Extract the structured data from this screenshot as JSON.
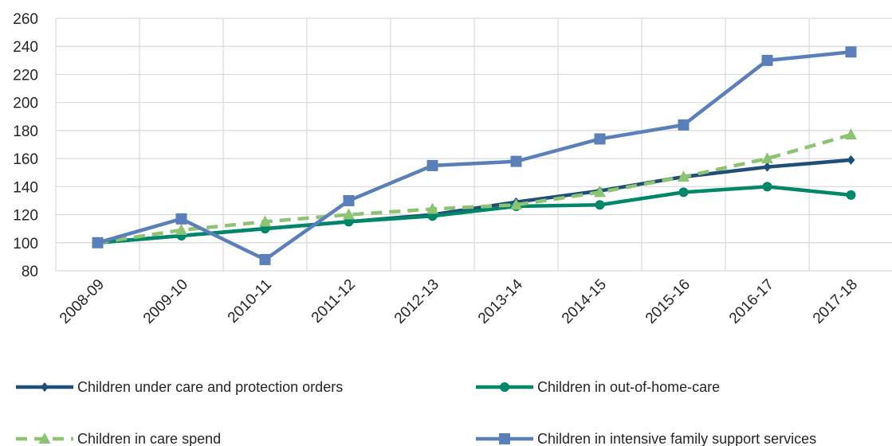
{
  "chart_data": {
    "type": "line",
    "title": "",
    "xlabel": "",
    "ylabel": "",
    "categories": [
      "2008-09",
      "2009-10",
      "2010-11",
      "2011-12",
      "2012-13",
      "2013-14",
      "2014-15",
      "2015-16",
      "2016-17",
      "2017-18"
    ],
    "ylim": [
      80,
      260
    ],
    "yticks": [
      80,
      100,
      120,
      140,
      160,
      180,
      200,
      220,
      240,
      260
    ],
    "grid": true,
    "legend_position": "bottom",
    "series": [
      {
        "name": "Children under care and protection orders",
        "color": "#1f4e79",
        "marker": "diamond",
        "dash": false,
        "values": [
          100,
          105,
          110,
          115,
          120,
          129,
          137,
          147,
          154,
          159
        ]
      },
      {
        "name": "Children in out-of-home-care",
        "color": "#00876a",
        "marker": "circle",
        "dash": false,
        "values": [
          100,
          105,
          110,
          115,
          119,
          126,
          127,
          136,
          140,
          134
        ]
      },
      {
        "name": "Children in care spend",
        "color": "#8cc474",
        "marker": "triangle",
        "dash": true,
        "values": [
          100,
          109,
          115,
          120,
          124,
          127,
          136,
          147,
          160,
          177
        ]
      },
      {
        "name": "Children in intensive family support services",
        "color": "#5b7fb9",
        "marker": "square",
        "dash": false,
        "values": [
          100,
          117,
          88,
          130,
          155,
          158,
          174,
          184,
          230,
          236
        ]
      }
    ]
  }
}
